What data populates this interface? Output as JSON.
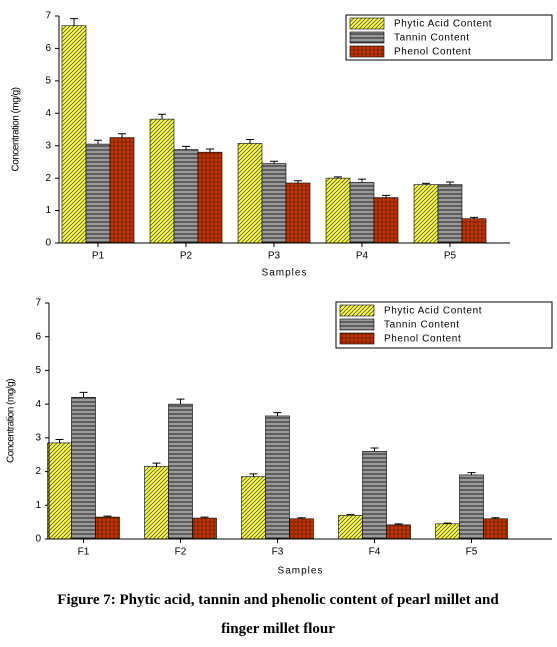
{
  "chart_data": [
    {
      "type": "bar",
      "x_label": "Samples",
      "y_label": "Concentration (mg/g)",
      "categories": [
        "P1",
        "P2",
        "P3",
        "P4",
        "P5"
      ],
      "series": [
        {
          "name": "Phytic Acid Content",
          "color": "#ffff33",
          "values": [
            6.7,
            3.82,
            3.07,
            2.0,
            1.8
          ],
          "errors": [
            0.22,
            0.15,
            0.12,
            0.04,
            0.04
          ]
        },
        {
          "name": "Tannin Content",
          "color": "#999999",
          "values": [
            3.05,
            2.88,
            2.45,
            1.87,
            1.8
          ],
          "errors": [
            0.12,
            0.1,
            0.07,
            0.1,
            0.08
          ]
        },
        {
          "name": "Phenol Content",
          "color": "#cc3300",
          "values": [
            3.25,
            2.8,
            1.85,
            1.4,
            0.75
          ],
          "errors": [
            0.12,
            0.1,
            0.07,
            0.07,
            0.04
          ]
        }
      ],
      "ylim": [
        0,
        7
      ],
      "yticks": [
        0,
        1,
        2,
        3,
        4,
        5,
        6,
        7
      ],
      "legend": "upper right"
    },
    {
      "type": "bar",
      "x_label": "Samples",
      "y_label": "Concentration (mg/g)",
      "categories": [
        "F1",
        "F2",
        "F3",
        "F4",
        "F5"
      ],
      "series": [
        {
          "name": "Phytic Acid Content",
          "color": "#ffff33",
          "values": [
            2.85,
            2.15,
            1.85,
            0.7,
            0.45
          ],
          "errors": [
            0.1,
            0.1,
            0.08,
            0.03,
            0.02
          ]
        },
        {
          "name": "Tannin Content",
          "color": "#999999",
          "values": [
            4.2,
            4.0,
            3.65,
            2.6,
            1.9
          ],
          "errors": [
            0.15,
            0.15,
            0.1,
            0.1,
            0.07
          ]
        },
        {
          "name": "Phenol Content",
          "color": "#cc3300",
          "values": [
            0.65,
            0.62,
            0.6,
            0.42,
            0.6
          ],
          "errors": [
            0.03,
            0.03,
            0.03,
            0.03,
            0.03
          ]
        }
      ],
      "ylim": [
        0,
        7
      ],
      "yticks": [
        0,
        1,
        2,
        3,
        4,
        5,
        6,
        7
      ],
      "legend": "upper right"
    }
  ],
  "caption": "Figure 7: Phytic acid, tannin and phenolic content of pearl millet and finger millet flour"
}
